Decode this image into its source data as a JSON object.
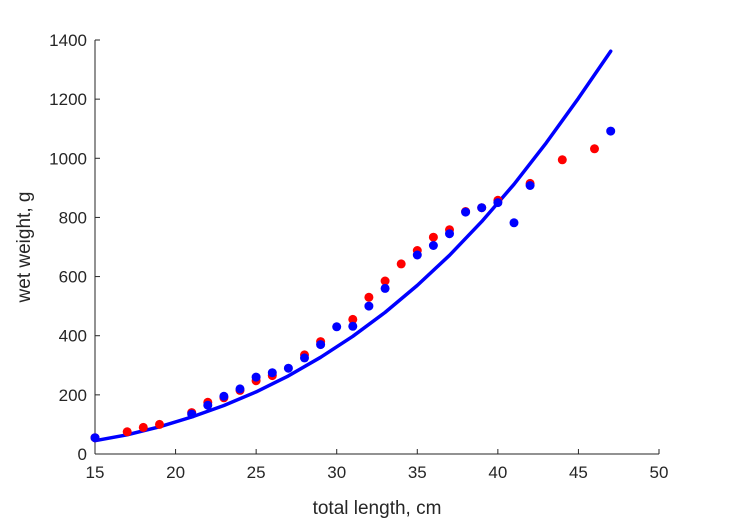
{
  "chart_data": {
    "type": "scatter",
    "xlabel": "total length, cm",
    "ylabel": "wet weight, g",
    "xlim": [
      15,
      50
    ],
    "ylim": [
      0,
      1400
    ],
    "xticks": [
      15,
      20,
      25,
      30,
      35,
      40,
      45,
      50
    ],
    "yticks": [
      0,
      200,
      400,
      600,
      800,
      1000,
      1200,
      1400
    ],
    "grid": false,
    "series": [
      {
        "kind": "scatter",
        "color": "#ff0000",
        "points": [
          [
            15,
            55
          ],
          [
            17,
            75
          ],
          [
            18,
            90
          ],
          [
            19,
            100
          ],
          [
            21,
            140
          ],
          [
            22,
            175
          ],
          [
            23,
            190
          ],
          [
            24,
            215
          ],
          [
            25,
            248
          ],
          [
            26,
            265
          ],
          [
            28,
            335
          ],
          [
            29,
            380
          ],
          [
            31,
            455
          ],
          [
            32,
            530
          ],
          [
            33,
            585
          ],
          [
            34,
            643
          ],
          [
            35,
            688
          ],
          [
            36,
            733
          ],
          [
            37,
            758
          ],
          [
            38,
            820
          ],
          [
            39,
            833
          ],
          [
            40,
            858
          ],
          [
            42,
            915
          ],
          [
            44,
            995
          ],
          [
            46,
            1032
          ]
        ]
      },
      {
        "kind": "scatter",
        "color": "#0000ff",
        "points": [
          [
            15,
            55
          ],
          [
            21,
            135
          ],
          [
            22,
            165
          ],
          [
            23,
            195
          ],
          [
            24,
            220
          ],
          [
            25,
            260
          ],
          [
            26,
            275
          ],
          [
            27,
            290
          ],
          [
            28,
            325
          ],
          [
            29,
            370
          ],
          [
            30,
            430
          ],
          [
            31,
            432
          ],
          [
            32,
            500
          ],
          [
            33,
            560
          ],
          [
            35,
            673
          ],
          [
            36,
            705
          ],
          [
            37,
            745
          ],
          [
            38,
            818
          ],
          [
            39,
            833
          ],
          [
            40,
            850
          ],
          [
            41,
            782
          ],
          [
            42,
            908
          ],
          [
            47,
            1092
          ]
        ]
      },
      {
        "kind": "line",
        "color": "#0000ff",
        "points": [
          [
            15,
            45
          ],
          [
            17,
            65
          ],
          [
            19,
            92
          ],
          [
            21,
            125
          ],
          [
            23,
            164
          ],
          [
            25,
            210
          ],
          [
            27,
            264
          ],
          [
            29,
            327
          ],
          [
            31,
            398
          ],
          [
            33,
            479
          ],
          [
            35,
            570
          ],
          [
            37,
            672
          ],
          [
            39,
            786
          ],
          [
            41,
            912
          ],
          [
            43,
            1052
          ],
          [
            45,
            1203
          ],
          [
            47,
            1362
          ]
        ]
      }
    ]
  }
}
